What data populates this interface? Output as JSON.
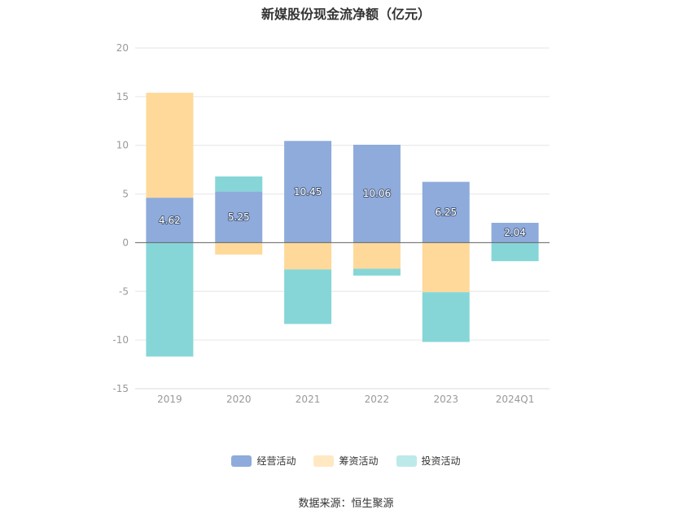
{
  "chart_data": {
    "type": "bar",
    "stacked": true,
    "title": "新媒股份现金流净额（亿元）",
    "categories": [
      "2019",
      "2020",
      "2021",
      "2022",
      "2023",
      "2024Q1"
    ],
    "series": [
      {
        "name": "经营活动",
        "color": "#8eabdb",
        "values": [
          4.62,
          5.25,
          10.45,
          10.06,
          6.25,
          2.04
        ],
        "labels": [
          "4.62",
          "5.25",
          "10.45",
          "10.06",
          "6.25",
          "2.04"
        ]
      },
      {
        "name": "筹资活动",
        "color": "#ffd99a",
        "values": [
          10.78,
          -1.22,
          -2.75,
          -2.68,
          -5.08,
          0.0
        ]
      },
      {
        "name": "投资活动",
        "color": "#86d6d8",
        "values": [
          -11.7,
          1.55,
          -5.6,
          -0.7,
          -5.12,
          -1.9
        ]
      }
    ],
    "yticks": [
      "20",
      "15",
      "10",
      "5",
      "0",
      "-5",
      "-10",
      "-15"
    ],
    "ylim": [
      -15,
      20
    ],
    "grid": true,
    "legend_position": "bottom"
  },
  "footer": {
    "source": "数据来源：恒生聚源"
  }
}
